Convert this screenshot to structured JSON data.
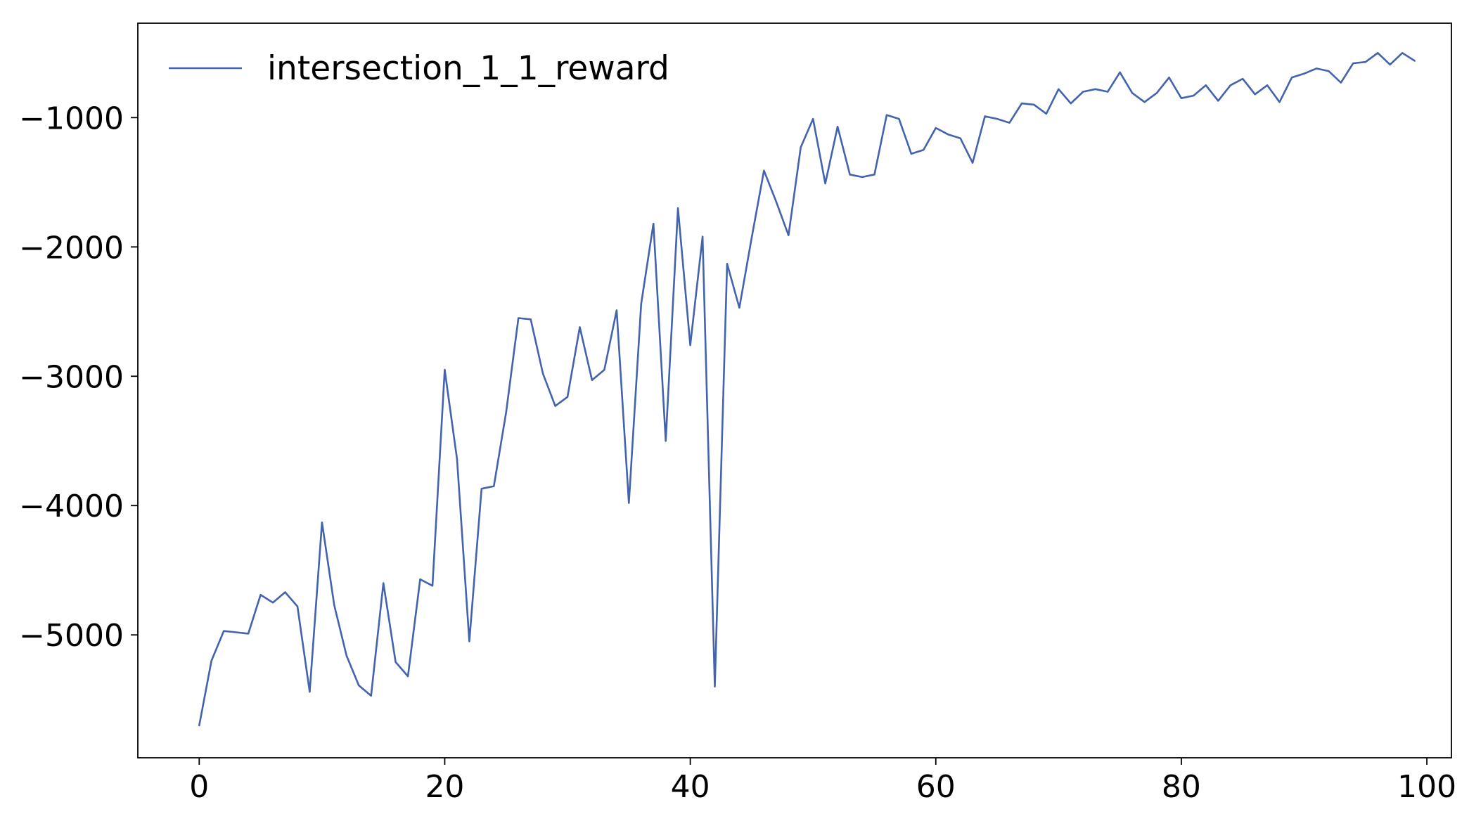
{
  "chart_data": {
    "type": "line",
    "title": "",
    "xlabel": "",
    "ylabel": "",
    "xlim": [
      -5,
      102
    ],
    "ylim": [
      -5950,
      -270
    ],
    "x_ticks": [
      0,
      20,
      40,
      60,
      80,
      100
    ],
    "y_ticks": [
      -1000,
      -2000,
      -3000,
      -4000,
      -5000
    ],
    "x_tick_labels": [
      "0",
      "20",
      "40",
      "60",
      "80",
      "100"
    ],
    "y_tick_labels": [
      "−1000",
      "−2000",
      "−3000",
      "−4000",
      "−5000"
    ],
    "grid": false,
    "legend_position": "upper-left",
    "series": [
      {
        "name": "intersection_1_1_reward",
        "color": "#4363ae",
        "x": [
          0,
          1,
          2,
          3,
          4,
          5,
          6,
          7,
          8,
          9,
          10,
          11,
          12,
          13,
          14,
          15,
          16,
          17,
          18,
          19,
          20,
          21,
          22,
          23,
          24,
          25,
          26,
          27,
          28,
          29,
          30,
          31,
          32,
          33,
          34,
          35,
          36,
          37,
          38,
          39,
          40,
          41,
          42,
          43,
          44,
          45,
          46,
          47,
          48,
          49,
          50,
          51,
          52,
          53,
          54,
          55,
          56,
          57,
          58,
          59,
          60,
          61,
          62,
          63,
          64,
          65,
          66,
          67,
          68,
          69,
          70,
          71,
          72,
          73,
          74,
          75,
          76,
          77,
          78,
          79,
          80,
          81,
          82,
          83,
          84,
          85,
          86,
          87,
          88,
          89,
          90,
          91,
          92,
          93,
          94,
          95,
          96,
          97,
          98,
          99
        ],
        "values": [
          -5700,
          -5200,
          -4970,
          -4980,
          -4990,
          -4690,
          -4750,
          -4670,
          -4780,
          -5440,
          -4130,
          -4770,
          -5160,
          -5390,
          -5470,
          -4600,
          -5210,
          -5320,
          -4570,
          -4620,
          -2950,
          -3640,
          -5050,
          -3870,
          -3850,
          -3280,
          -2550,
          -2560,
          -2980,
          -3230,
          -3160,
          -2620,
          -3030,
          -2950,
          -2490,
          -3980,
          -2440,
          -1820,
          -3500,
          -1700,
          -2760,
          -1920,
          -5400,
          -2130,
          -2470,
          -1930,
          -1410,
          -1650,
          -1910,
          -1230,
          -1010,
          -1510,
          -1070,
          -1440,
          -1460,
          -1440,
          -980,
          -1010,
          -1280,
          -1250,
          -1080,
          -1130,
          -1160,
          -1350,
          -990,
          -1010,
          -1040,
          -890,
          -900,
          -970,
          -780,
          -890,
          -800,
          -780,
          -800,
          -650,
          -810,
          -880,
          -810,
          -690,
          -850,
          -830,
          -750,
          -870,
          -750,
          -700,
          -820,
          -750,
          -880,
          -690,
          -660,
          -620,
          -640,
          -730,
          -580,
          -570,
          -500,
          -590,
          -500,
          -560
        ]
      }
    ]
  }
}
